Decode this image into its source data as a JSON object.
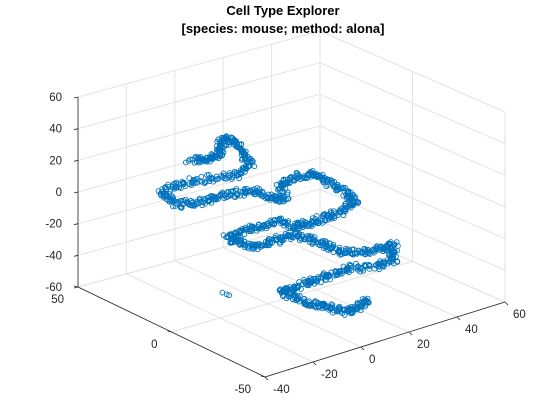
{
  "chart_data": {
    "type": "scatter",
    "title": "Cell Type Explorer",
    "subtitle": "[species: mouse; method: alona]",
    "marker": "circle",
    "marker_color": "#0072BD",
    "axes": {
      "x": {
        "range": [
          -40,
          60
        ],
        "ticks": [
          -40,
          -20,
          0,
          20,
          40,
          60
        ],
        "tick_labels": [
          "-40",
          "-20",
          "0",
          "20",
          "40",
          "60"
        ]
      },
      "y": {
        "range": [
          -50,
          50
        ],
        "ticks": [
          -50,
          0,
          50
        ],
        "tick_labels": [
          "-50",
          "0",
          "50"
        ]
      },
      "z": {
        "range": [
          -60,
          60
        ],
        "ticks": [
          -60,
          -40,
          -20,
          0,
          20,
          40,
          60
        ],
        "tick_labels": [
          "-60",
          "-40",
          "-20",
          "0",
          "20",
          "40",
          "60"
        ]
      }
    },
    "grid": true,
    "box": false,
    "trajectory": {
      "description_of_shape": "continuous chain of overlapping circular markers forming a random-walk-like path",
      "anchors": [
        [
          -18,
          18,
          28
        ],
        [
          -14,
          14,
          30
        ],
        [
          -12,
          10,
          34
        ],
        [
          -10,
          12,
          40
        ],
        [
          -8,
          10,
          42
        ],
        [
          -6,
          6,
          36
        ],
        [
          -4,
          4,
          28
        ],
        [
          -8,
          8,
          20
        ],
        [
          -14,
          16,
          16
        ],
        [
          -20,
          22,
          12
        ],
        [
          -24,
          26,
          6
        ],
        [
          -22,
          20,
          2
        ],
        [
          -18,
          14,
          4
        ],
        [
          -14,
          10,
          8
        ],
        [
          -10,
          4,
          12
        ],
        [
          -6,
          0,
          14
        ],
        [
          -2,
          -4,
          10
        ],
        [
          2,
          -6,
          8
        ],
        [
          4,
          -2,
          16
        ],
        [
          8,
          -6,
          20
        ],
        [
          12,
          -10,
          22
        ],
        [
          14,
          -14,
          18
        ],
        [
          16,
          -20,
          14
        ],
        [
          18,
          -24,
          10
        ],
        [
          14,
          -22,
          4
        ],
        [
          10,
          -18,
          0
        ],
        [
          6,
          -14,
          -4
        ],
        [
          4,
          -10,
          -8
        ],
        [
          0,
          -6,
          -4
        ],
        [
          -4,
          -2,
          -8
        ],
        [
          -8,
          2,
          -12
        ],
        [
          -12,
          6,
          -16
        ],
        [
          -8,
          4,
          -20
        ],
        [
          -4,
          0,
          -22
        ],
        [
          0,
          -4,
          -18
        ],
        [
          4,
          -8,
          -14
        ],
        [
          8,
          -12,
          -16
        ],
        [
          12,
          -16,
          -20
        ],
        [
          16,
          -20,
          -24
        ],
        [
          20,
          -26,
          -22
        ],
        [
          24,
          -30,
          -20
        ],
        [
          26,
          -34,
          -16
        ],
        [
          24,
          -36,
          -24
        ],
        [
          20,
          -32,
          -28
        ],
        [
          14,
          -26,
          -30
        ],
        [
          10,
          -22,
          -34
        ],
        [
          6,
          -18,
          -38
        ],
        [
          2,
          -14,
          -42
        ],
        [
          -2,
          -10,
          -46
        ],
        [
          2,
          -14,
          -50
        ],
        [
          6,
          -18,
          -54
        ],
        [
          10,
          -20,
          -56
        ],
        [
          14,
          -24,
          -58
        ],
        [
          18,
          -26,
          -56
        ],
        [
          20,
          -28,
          -52
        ]
      ],
      "stray_points": [
        [
          -14,
          4,
          -50
        ],
        [
          -13,
          4,
          -51
        ],
        [
          -15,
          5,
          -49
        ]
      ]
    }
  }
}
